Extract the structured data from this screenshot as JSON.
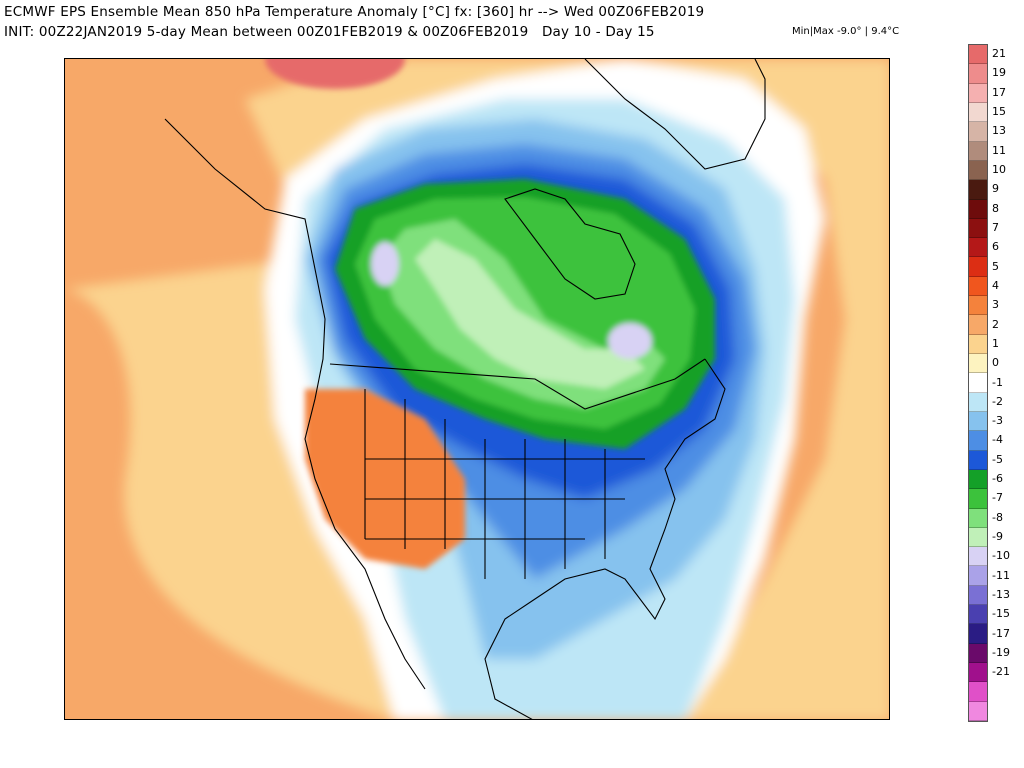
{
  "header": {
    "line1": "ECMWF EPS Ensemble Mean 850 hPa Temperature Anomaly [°C] fx: [360] hr --> Wed 00Z06FEB2019",
    "line2": "INIT: 00Z22JAN2019 5-day Mean between 00Z01FEB2019 & 00Z06FEB2019   Day 10 - Day 15",
    "minmax": "Min|Max -9.0° | 9.4°C"
  },
  "colorbar": {
    "levels": [
      {
        "label": "21",
        "color": "#e66a6a"
      },
      {
        "label": "19",
        "color": "#ee8c8c"
      },
      {
        "label": "17",
        "color": "#f5b0b0"
      },
      {
        "label": "15",
        "color": "#f2d8d0"
      },
      {
        "label": "13",
        "color": "#d6b4a6"
      },
      {
        "label": "11",
        "color": "#b08c7c"
      },
      {
        "label": "10",
        "color": "#8a6350"
      },
      {
        "label": "9",
        "color": "#4a1a10"
      },
      {
        "label": "8",
        "color": "#6e0c0c"
      },
      {
        "label": "7",
        "color": "#8c1010"
      },
      {
        "label": "6",
        "color": "#b41818"
      },
      {
        "label": "5",
        "color": "#dc2e14"
      },
      {
        "label": "4",
        "color": "#f0561e"
      },
      {
        "label": "3",
        "color": "#f4823c"
      },
      {
        "label": "2",
        "color": "#f7a868"
      },
      {
        "label": "1",
        "color": "#fbd38e"
      },
      {
        "label": "0",
        "color": "#fdf3c0"
      },
      {
        "label": "-1",
        "color": "#ffffff"
      },
      {
        "label": "-2",
        "color": "#bde6f6"
      },
      {
        "label": "-3",
        "color": "#86c2ee"
      },
      {
        "label": "-4",
        "color": "#4d8ee4"
      },
      {
        "label": "-5",
        "color": "#1c58d8"
      },
      {
        "label": "-6",
        "color": "#14a028"
      },
      {
        "label": "-7",
        "color": "#3cc23c"
      },
      {
        "label": "-8",
        "color": "#7fe07c"
      },
      {
        "label": "-9",
        "color": "#c0f0b8"
      },
      {
        "label": "-10",
        "color": "#d8d2f4"
      },
      {
        "label": "-11",
        "color": "#aaa2e8"
      },
      {
        "label": "-13",
        "color": "#7a70d4"
      },
      {
        "label": "-15",
        "color": "#4a40b0"
      },
      {
        "label": "-17",
        "color": "#2a1c84"
      },
      {
        "label": "-19",
        "color": "#6a0a6a"
      },
      {
        "label": "-21",
        "color": "#a0108c"
      },
      {
        "label": "",
        "color": "#e050c8"
      },
      {
        "label": "",
        "color": "#f088e0"
      }
    ]
  },
  "map": {
    "region": "North America",
    "colors": {
      "warm_1": "#fbd38e",
      "warm_2": "#f7a868",
      "warm_3": "#f4823c",
      "neutral": "#ffffff",
      "cool_1": "#bde6f6",
      "cool_2": "#86c2ee",
      "cool_3": "#4d8ee4",
      "cool_4": "#1c58d8",
      "cold_1": "#14a028",
      "cold_2": "#3cc23c",
      "cold_3": "#7fe07c",
      "cold_4": "#c0f0b8",
      "coldest": "#d8d2f4",
      "hot_spot": "#e66a6a",
      "coastline": "#000000"
    }
  }
}
